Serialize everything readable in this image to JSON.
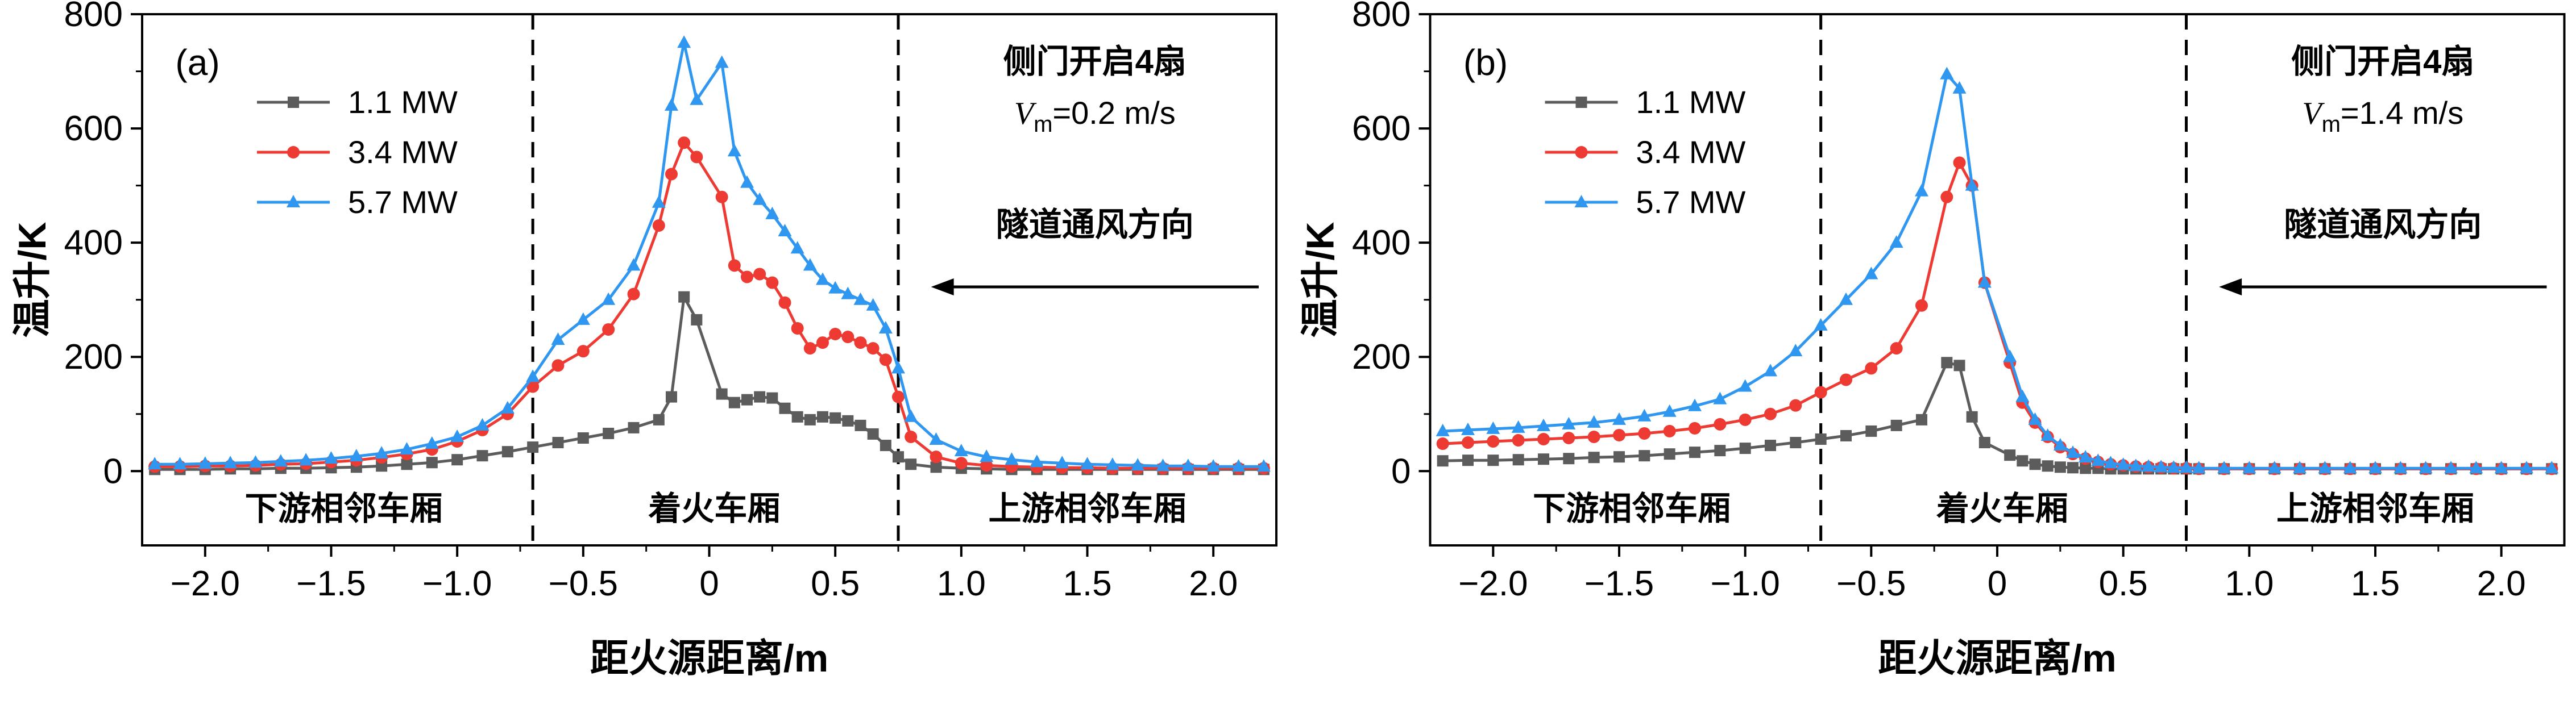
{
  "figure": {
    "description": "温升随距火源距离变化曲线（双面板）",
    "panel_tags": [
      "(a)",
      "(b)"
    ]
  },
  "chart_data": [
    {
      "type": "line",
      "tag": "(a)",
      "xlabel": "距火源距离/m",
      "ylabel": "温升/K",
      "xlim": [
        -2.25,
        2.25
      ],
      "ylim": [
        -130,
        800
      ],
      "xticks": [
        -2.0,
        -1.5,
        -1.0,
        -0.5,
        0,
        0.5,
        1.0,
        1.5,
        2.0
      ],
      "yticks": [
        0,
        200,
        400,
        600,
        800
      ],
      "grid": false,
      "legend_position": "top-left",
      "annotation": {
        "line1": "侧门开启4扇",
        "v_var": "V",
        "v_sub": "m",
        "v_rest": "=0.2 m/s"
      },
      "flow_label": "隧道通风方向",
      "dashed_x": [
        -0.7,
        0.75
      ],
      "regions": [
        {
          "label": "下游相邻车厢",
          "x": -1.45
        },
        {
          "label": "着火车厢",
          "x": 0.02
        },
        {
          "label": "上游相邻车厢",
          "x": 1.5
        }
      ],
      "x": [
        -2.2,
        -2.1,
        -2.0,
        -1.9,
        -1.8,
        -1.7,
        -1.6,
        -1.5,
        -1.4,
        -1.3,
        -1.2,
        -1.1,
        -1.0,
        -0.9,
        -0.8,
        -0.7,
        -0.6,
        -0.5,
        -0.4,
        -0.3,
        -0.2,
        -0.15,
        -0.1,
        -0.05,
        0.05,
        0.1,
        0.15,
        0.2,
        0.25,
        0.3,
        0.35,
        0.4,
        0.45,
        0.5,
        0.55,
        0.6,
        0.65,
        0.7,
        0.75,
        0.8,
        0.9,
        1.0,
        1.1,
        1.2,
        1.3,
        1.4,
        1.5,
        1.6,
        1.7,
        1.8,
        1.9,
        2.0,
        2.1,
        2.2
      ],
      "series": [
        {
          "name": "1.1 MW",
          "color": "#5c5c5c",
          "marker": "square",
          "y": [
            3,
            3,
            3,
            4,
            4,
            5,
            5,
            6,
            7,
            9,
            12,
            15,
            20,
            27,
            34,
            42,
            50,
            58,
            66,
            76,
            90,
            130,
            305,
            265,
            135,
            120,
            125,
            130,
            128,
            110,
            95,
            90,
            95,
            93,
            88,
            80,
            65,
            45,
            25,
            12,
            7,
            5,
            4,
            3,
            3,
            3,
            3,
            3,
            3,
            3,
            3,
            3,
            3,
            3
          ]
        },
        {
          "name": "3.4 MW",
          "color": "#ed3b33",
          "marker": "circle",
          "y": [
            8,
            8,
            9,
            9,
            10,
            12,
            13,
            16,
            19,
            24,
            30,
            38,
            52,
            72,
            100,
            148,
            185,
            210,
            248,
            310,
            430,
            520,
            575,
            550,
            480,
            360,
            340,
            345,
            330,
            295,
            250,
            215,
            225,
            240,
            235,
            225,
            215,
            195,
            130,
            60,
            25,
            14,
            10,
            8,
            7,
            6,
            6,
            5,
            5,
            5,
            5,
            5,
            5,
            5
          ]
        },
        {
          "name": "5.7 MW",
          "color": "#2f97f0",
          "marker": "triangle",
          "y": [
            12,
            12,
            13,
            14,
            15,
            17,
            19,
            22,
            26,
            31,
            38,
            48,
            60,
            80,
            110,
            165,
            230,
            265,
            300,
            360,
            470,
            640,
            750,
            650,
            715,
            560,
            505,
            475,
            450,
            420,
            390,
            360,
            335,
            320,
            310,
            300,
            290,
            250,
            180,
            95,
            55,
            35,
            25,
            20,
            16,
            14,
            12,
            11,
            10,
            9,
            9,
            8,
            8,
            8
          ]
        }
      ]
    },
    {
      "type": "line",
      "tag": "(b)",
      "xlabel": "距火源距离/m",
      "ylabel": "温升/K",
      "xlim": [
        -2.25,
        2.25
      ],
      "ylim": [
        -130,
        800
      ],
      "xticks": [
        -2.0,
        -1.5,
        -1.0,
        -0.5,
        0,
        0.5,
        1.0,
        1.5,
        2.0
      ],
      "yticks": [
        0,
        200,
        400,
        600,
        800
      ],
      "grid": false,
      "legend_position": "top-left",
      "annotation": {
        "line1": "侧门开启4扇",
        "v_var": "V",
        "v_sub": "m",
        "v_rest": "=1.4 m/s"
      },
      "flow_label": "隧道通风方向",
      "dashed_x": [
        -0.7,
        0.75
      ],
      "regions": [
        {
          "label": "下游相邻车厢",
          "x": -1.45
        },
        {
          "label": "着火车厢",
          "x": 0.02
        },
        {
          "label": "上游相邻车厢",
          "x": 1.5
        }
      ],
      "x": [
        -2.2,
        -2.1,
        -2.0,
        -1.9,
        -1.8,
        -1.7,
        -1.6,
        -1.5,
        -1.4,
        -1.3,
        -1.2,
        -1.1,
        -1.0,
        -0.9,
        -0.8,
        -0.7,
        -0.6,
        -0.5,
        -0.4,
        -0.3,
        -0.2,
        -0.15,
        -0.1,
        -0.05,
        0.05,
        0.1,
        0.15,
        0.2,
        0.25,
        0.3,
        0.35,
        0.4,
        0.45,
        0.5,
        0.55,
        0.6,
        0.65,
        0.7,
        0.75,
        0.8,
        0.9,
        1.0,
        1.1,
        1.2,
        1.3,
        1.4,
        1.5,
        1.6,
        1.7,
        1.8,
        1.9,
        2.0,
        2.1,
        2.2
      ],
      "series": [
        {
          "name": "1.1 MW",
          "color": "#5c5c5c",
          "marker": "square",
          "y": [
            18,
            19,
            19,
            20,
            21,
            22,
            24,
            25,
            27,
            30,
            33,
            36,
            40,
            45,
            50,
            56,
            62,
            70,
            80,
            90,
            190,
            185,
            95,
            50,
            28,
            18,
            12,
            9,
            7,
            6,
            5,
            5,
            4,
            4,
            4,
            4,
            4,
            4,
            4,
            4,
            4,
            4,
            4,
            4,
            4,
            4,
            4,
            4,
            4,
            4,
            4,
            4,
            4,
            4
          ]
        },
        {
          "name": "3.4 MW",
          "color": "#ed3b33",
          "marker": "circle",
          "y": [
            48,
            50,
            52,
            54,
            56,
            58,
            60,
            63,
            66,
            70,
            75,
            82,
            90,
            100,
            115,
            138,
            160,
            180,
            215,
            290,
            480,
            540,
            500,
            330,
            190,
            120,
            85,
            60,
            42,
            30,
            22,
            16,
            12,
            10,
            8,
            7,
            6,
            5,
            5,
            4,
            4,
            4,
            4,
            4,
            4,
            4,
            4,
            4,
            4,
            4,
            4,
            4,
            4,
            4
          ]
        },
        {
          "name": "5.7 MW",
          "color": "#2f97f0",
          "marker": "triangle",
          "y": [
            70,
            72,
            74,
            76,
            79,
            82,
            85,
            90,
            96,
            104,
            114,
            126,
            148,
            175,
            210,
            255,
            300,
            345,
            400,
            490,
            695,
            670,
            500,
            330,
            200,
            130,
            90,
            62,
            45,
            32,
            24,
            18,
            14,
            11,
            9,
            8,
            7,
            6,
            6,
            5,
            5,
            5,
            5,
            5,
            5,
            5,
            5,
            5,
            5,
            5,
            5,
            5,
            5,
            5
          ]
        }
      ]
    }
  ]
}
